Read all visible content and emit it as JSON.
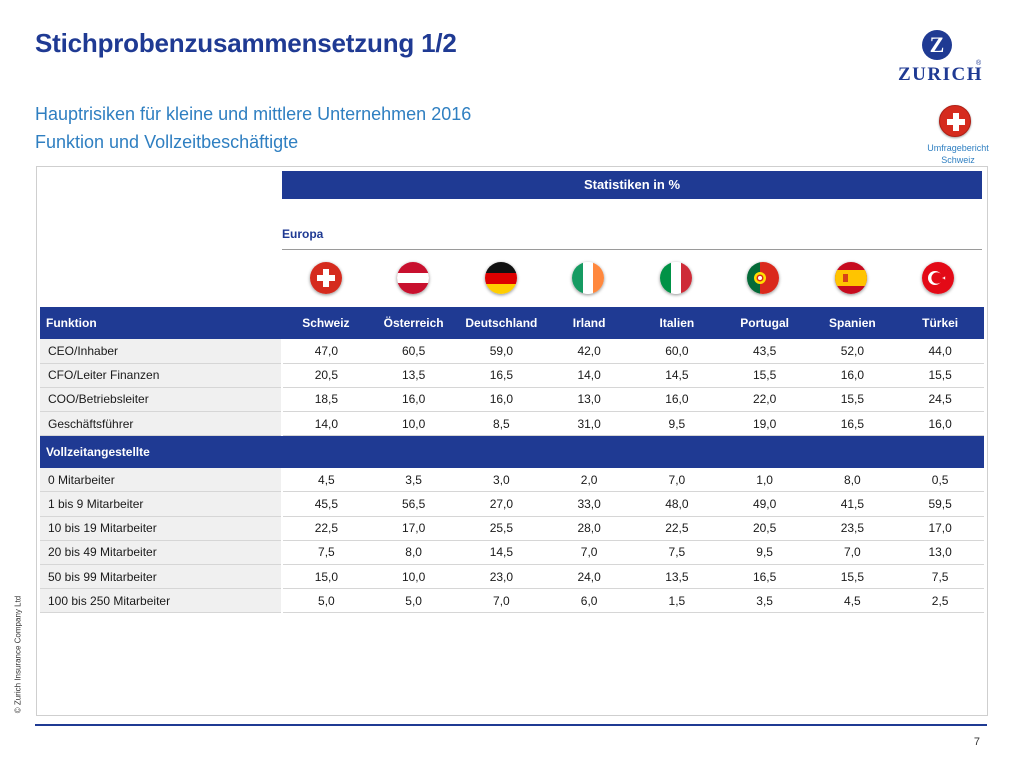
{
  "title": "Stichprobenzusammensetzung 1/2",
  "subtitle_line1": "Hauptrisiken für kleine und mittlere Unternehmen 2016",
  "subtitle_line2": "Funktion und Vollzeitbeschäftigte",
  "logo": {
    "mark": "Z",
    "text": "ZURICH",
    "reg": "®"
  },
  "badge": {
    "line1": "Umfragebericht",
    "line2": "Schweiz"
  },
  "copyright": "© Zurich Insurance Company Ltd",
  "page_number": "7",
  "stat_header": "Statistiken in %",
  "region_label": "Europa",
  "flags": [
    "swiss-flag-icon",
    "austrian-flag-icon",
    "german-flag-icon",
    "irish-flag-icon",
    "italian-flag-icon",
    "portuguese-flag-icon",
    "spanish-flag-icon",
    "turkish-flag-icon"
  ],
  "colors": {
    "brand_blue": "#1f3a93",
    "subtitle_blue": "#2f7fc1",
    "swiss_red": "#d52b1e"
  },
  "table": {
    "header_label": "Funktion",
    "countries": [
      "Schweiz",
      "Österreich",
      "Deutschland",
      "Irland",
      "Italien",
      "Portugal",
      "Spanien",
      "Türkei"
    ],
    "function_rows": [
      {
        "label": "CEO/Inhaber",
        "values": [
          "47,0",
          "60,5",
          "59,0",
          "42,0",
          "60,0",
          "43,5",
          "52,0",
          "44,0"
        ]
      },
      {
        "label": "CFO/Leiter Finanzen",
        "values": [
          "20,5",
          "13,5",
          "16,5",
          "14,0",
          "14,5",
          "15,5",
          "16,0",
          "15,5"
        ]
      },
      {
        "label": "COO/Betriebsleiter",
        "values": [
          "18,5",
          "16,0",
          "16,0",
          "13,0",
          "16,0",
          "22,0",
          "15,5",
          "24,5"
        ]
      },
      {
        "label": "Geschäftsführer",
        "values": [
          "14,0",
          "10,0",
          "8,5",
          "31,0",
          "9,5",
          "19,0",
          "16,5",
          "16,0"
        ]
      }
    ],
    "section_label": "Vollzeitangestellte",
    "employee_rows": [
      {
        "label": "0 Mitarbeiter",
        "values": [
          "4,5",
          "3,5",
          "3,0",
          "2,0",
          "7,0",
          "1,0",
          "8,0",
          "0,5"
        ]
      },
      {
        "label": "1 bis 9 Mitarbeiter",
        "values": [
          "45,5",
          "56,5",
          "27,0",
          "33,0",
          "48,0",
          "49,0",
          "41,5",
          "59,5"
        ]
      },
      {
        "label": "10 bis 19 Mitarbeiter",
        "values": [
          "22,5",
          "17,0",
          "25,5",
          "28,0",
          "22,5",
          "20,5",
          "23,5",
          "17,0"
        ]
      },
      {
        "label": "20 bis 49 Mitarbeiter",
        "values": [
          "7,5",
          "8,0",
          "14,5",
          "7,0",
          "7,5",
          "9,5",
          "7,0",
          "13,0"
        ]
      },
      {
        "label": "50 bis 99 Mitarbeiter",
        "values": [
          "15,0",
          "10,0",
          "23,0",
          "24,0",
          "13,5",
          "16,5",
          "15,5",
          "7,5"
        ]
      },
      {
        "label": "100 bis 250 Mitarbeiter",
        "values": [
          "5,0",
          "5,0",
          "7,0",
          "6,0",
          "1,5",
          "3,5",
          "4,5",
          "2,5"
        ]
      }
    ]
  }
}
